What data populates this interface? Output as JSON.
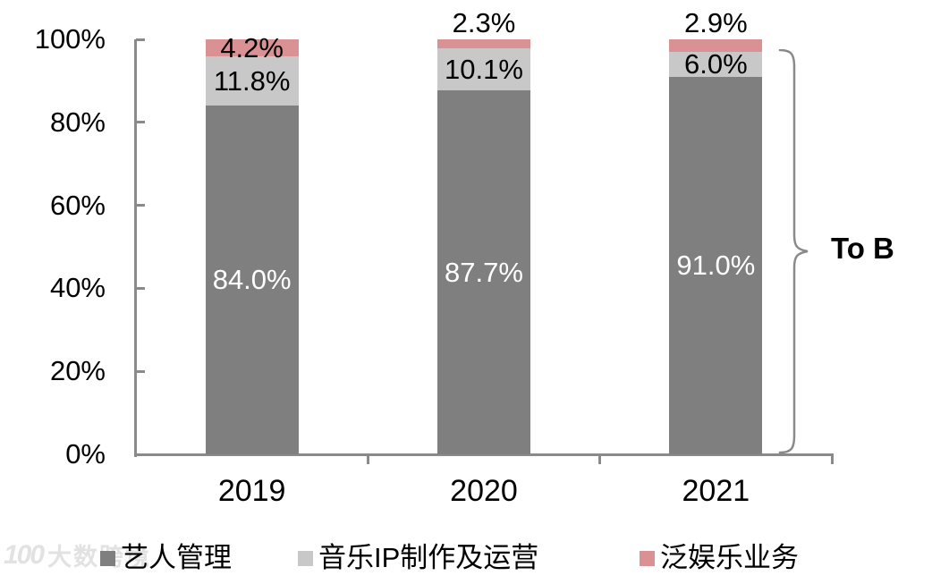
{
  "chart_data": {
    "type": "bar",
    "stacked": true,
    "categories": [
      "2019",
      "2020",
      "2021"
    ],
    "series": [
      {
        "name": "艺人管理",
        "color": "#7f7f7f",
        "label_color": "#ffffff",
        "values": [
          84.0,
          87.7,
          91.0
        ],
        "labels": [
          "84.0%",
          "87.7%",
          "91.0%"
        ]
      },
      {
        "name": "音乐IP制作及运营",
        "color": "#c8c8c8",
        "label_color": "#000000",
        "values": [
          11.8,
          10.1,
          6.0
        ],
        "labels": [
          "11.8%",
          "10.1%",
          "6.0%"
        ]
      },
      {
        "name": "泛娱乐业务",
        "color": "#d99193",
        "label_color": "#000000",
        "values": [
          4.2,
          2.3,
          2.9
        ],
        "labels": [
          "4.2%",
          "2.3%",
          "2.9%"
        ]
      }
    ],
    "ylim": [
      0,
      100
    ],
    "yticks": [
      "0%",
      "20%",
      "40%",
      "60%",
      "80%",
      "100%"
    ],
    "grid": false,
    "legend_position": "bottom",
    "annotation": {
      "label": "To B",
      "bracket_color": "#8a8a8a"
    },
    "axis_color": "#8a8a8a"
  },
  "watermark": {
    "logo": "100",
    "brand": "大数跨境"
  }
}
